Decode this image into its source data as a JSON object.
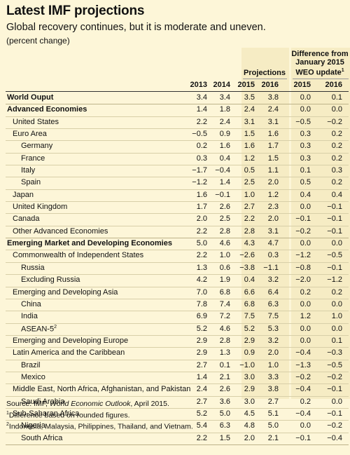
{
  "title": "Latest IMF projections",
  "subtitle": "Global recovery continues, but it is moderate and uneven.",
  "unit": "(percent change)",
  "header": {
    "projections": "Projections",
    "difference_line1": "Difference from",
    "difference_line2": "January 2015",
    "difference_line3": "WEO update",
    "difference_sup": "1"
  },
  "years": [
    "2013",
    "2014",
    "2015",
    "2016",
    "2015",
    "2016"
  ],
  "rows": [
    {
      "label": "World Ouput",
      "values": [
        "3.4",
        "3.4",
        "3.5",
        "3.8",
        "0.0",
        "0.1"
      ]
    },
    {
      "label": "Advanced Economies",
      "values": [
        "1.4",
        "1.8",
        "2.4",
        "2.4",
        "0.0",
        "0.0"
      ]
    },
    {
      "label": "United States",
      "values": [
        "2.2",
        "2.4",
        "3.1",
        "3.1",
        "−0.5",
        "−0.2"
      ]
    },
    {
      "label": "Euro Area",
      "values": [
        "−0.5",
        "0.9",
        "1.5",
        "1.6",
        "0.3",
        "0.2"
      ]
    },
    {
      "label": "Germany",
      "values": [
        "0.2",
        "1.6",
        "1.6",
        "1.7",
        "0.3",
        "0.2"
      ]
    },
    {
      "label": "France",
      "values": [
        "0.3",
        "0.4",
        "1.2",
        "1.5",
        "0.3",
        "0.2"
      ]
    },
    {
      "label": "Italy",
      "values": [
        "−1.7",
        "−0.4",
        "0.5",
        "1.1",
        "0.1",
        "0.3"
      ]
    },
    {
      "label": "Spain",
      "values": [
        "−1.2",
        "1.4",
        "2.5",
        "2.0",
        "0.5",
        "0.2"
      ]
    },
    {
      "label": "Japan",
      "values": [
        "1.6",
        "−0.1",
        "1.0",
        "1.2",
        "0.4",
        "0.4"
      ]
    },
    {
      "label": "United Kingdom",
      "values": [
        "1.7",
        "2.6",
        "2.7",
        "2.3",
        "0.0",
        "−0.1"
      ]
    },
    {
      "label": "Canada",
      "values": [
        "2.0",
        "2.5",
        "2.2",
        "2.0",
        "−0.1",
        "−0.1"
      ]
    },
    {
      "label": "Other Advanced Economies",
      "values": [
        "2.2",
        "2.8",
        "2.8",
        "3.1",
        "−0.2",
        "−0.1"
      ]
    },
    {
      "label": "Emerging Market and Developing Economies",
      "values": [
        "5.0",
        "4.6",
        "4.3",
        "4.7",
        "0.0",
        "0.0"
      ]
    },
    {
      "label": "Commonwealth of Independent States",
      "values": [
        "2.2",
        "1.0",
        "−2.6",
        "0.3",
        "−1.2",
        "−0.5"
      ]
    },
    {
      "label": "Russia",
      "values": [
        "1.3",
        "0.6",
        "−3.8",
        "−1.1",
        "−0.8",
        "−0.1"
      ]
    },
    {
      "label": "Excluding Russia",
      "values": [
        "4.2",
        "1.9",
        "0.4",
        "3.2",
        "−2.0",
        "−1.2"
      ]
    },
    {
      "label": "Emerging and Developing Asia",
      "values": [
        "7.0",
        "6.8",
        "6.6",
        "6.4",
        "0.2",
        "0.2"
      ]
    },
    {
      "label": "China",
      "values": [
        "7.8",
        "7.4",
        "6.8",
        "6.3",
        "0.0",
        "0.0"
      ]
    },
    {
      "label": "India",
      "values": [
        "6.9",
        "7.2",
        "7.5",
        "7.5",
        "1.2",
        "1.0"
      ]
    },
    {
      "label": "ASEAN-5",
      "sup": "2",
      "values": [
        "5.2",
        "4.6",
        "5.2",
        "5.3",
        "0.0",
        "0.0"
      ]
    },
    {
      "label": "Emerging and Developing Europe",
      "values": [
        "2.9",
        "2.8",
        "2.9",
        "3.2",
        "0.0",
        "0.1"
      ]
    },
    {
      "label": "Latin America and the Caribbean",
      "values": [
        "2.9",
        "1.3",
        "0.9",
        "2.0",
        "−0.4",
        "−0.3"
      ]
    },
    {
      "label": "Brazil",
      "values": [
        "2.7",
        "0.1",
        "−1.0",
        "1.0",
        "−1.3",
        "−0.5"
      ]
    },
    {
      "label": "Mexico",
      "values": [
        "1.4",
        "2.1",
        "3.0",
        "3.3",
        "−0.2",
        "−0.2"
      ]
    },
    {
      "label": "Middle East, North Africa, Afghanistan, and Pakistan",
      "values": [
        "2.4",
        "2.6",
        "2.9",
        "3.8",
        "−0.4",
        "−0.1"
      ]
    },
    {
      "label": "Saudi Arabia",
      "values": [
        "2.7",
        "3.6",
        "3.0",
        "2.7",
        "0.2",
        "0.0"
      ]
    },
    {
      "label": "Sub-Saharan Africa",
      "values": [
        "5.2",
        "5.0",
        "4.5",
        "5.1",
        "−0.4",
        "−0.1"
      ]
    },
    {
      "label": "Nigeria",
      "values": [
        "5.4",
        "6.3",
        "4.8",
        "5.0",
        "0.0",
        "−0.2"
      ]
    },
    {
      "label": "South Africa",
      "values": [
        "2.2",
        "1.5",
        "2.0",
        "2.1",
        "−0.1",
        "−0.4"
      ]
    }
  ],
  "footnotes": {
    "source_prefix": "Source: IMF, ",
    "source_italic": "World Economic Outlook",
    "source_suffix": ", April 2015.",
    "note1_sup": "1",
    "note1": "Difference based on rounded figures.",
    "note2_sup": "2",
    "note2": "Indonesia, Malaysia, Philippines, Thailand, and Vietnam."
  },
  "colors": {
    "background": "#fdf6d8",
    "band": "#f6ecc4",
    "text": "#111111"
  }
}
